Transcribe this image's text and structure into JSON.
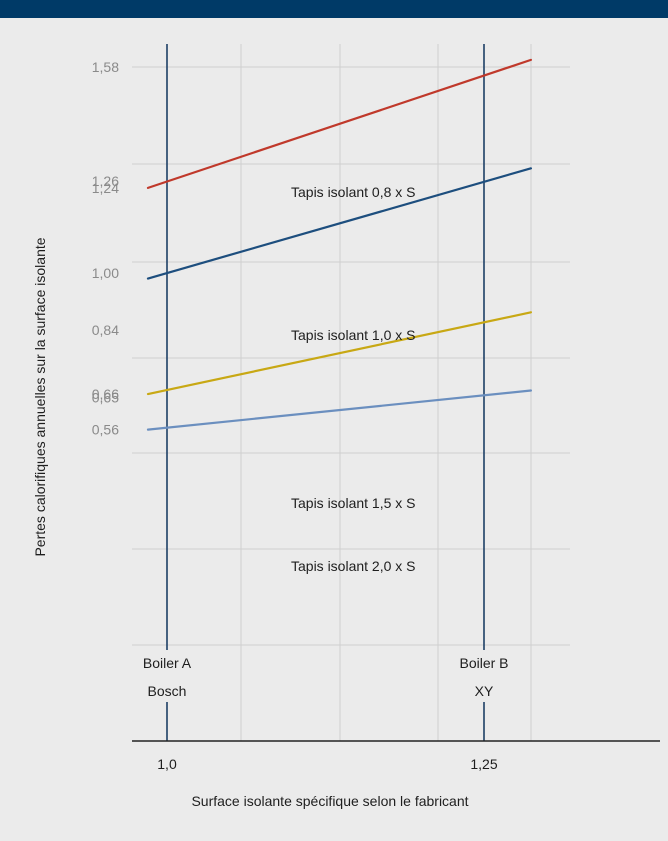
{
  "chart_data": {
    "type": "line",
    "xlabel": "Surface isolante spécifique selon le fabricant",
    "ylabel": "Pertes calorifiques annuelles sur la surface isolante",
    "x_ticks": [
      {
        "value": 1.0,
        "label": "1,0"
      },
      {
        "value": 1.25,
        "label": "1,25"
      }
    ],
    "y_ticks": [
      {
        "value": 1.58,
        "label": "1,58"
      },
      {
        "value": 1.26,
        "label": "1,26"
      },
      {
        "value": 1.24,
        "label": "1,24"
      },
      {
        "value": 1.0,
        "label": "1,00"
      },
      {
        "value": 0.84,
        "label": "0,84"
      },
      {
        "value": 0.66,
        "label": "0,66"
      },
      {
        "value": 0.65,
        "label": "0,65"
      },
      {
        "value": 0.56,
        "label": "0,56"
      }
    ],
    "markers": [
      {
        "x": 1.0,
        "label_line1": "Boiler A",
        "label_line2": "Bosch"
      },
      {
        "x": 1.25,
        "label_line1": "Boiler B",
        "label_line2": "XY"
      }
    ],
    "series": [
      {
        "name": "Tapis isolant 0,8 x S",
        "color": "#c0392b",
        "x": [
          0.985,
          1.287
        ],
        "y": [
          1.24,
          1.6
        ]
      },
      {
        "name": "Tapis isolant 1,0 x S",
        "color": "#1d4e7e",
        "x": [
          0.985,
          1.287
        ],
        "y": [
          0.985,
          1.295
        ]
      },
      {
        "name": "Tapis isolant 1,5 x S",
        "color": "#c8a814",
        "x": [
          0.985,
          1.287
        ],
        "y": [
          0.66,
          0.89
        ]
      },
      {
        "name": "Tapis isolant 2,0 x S",
        "color": "#6b8fbf",
        "x": [
          0.985,
          1.287
        ],
        "y": [
          0.56,
          0.67
        ]
      }
    ]
  }
}
